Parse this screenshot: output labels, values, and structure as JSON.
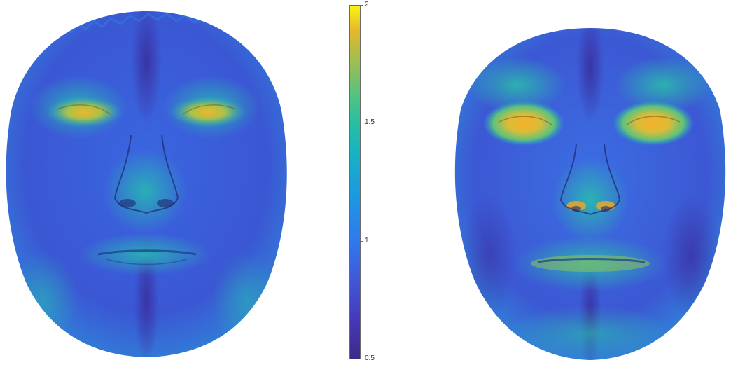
{
  "image": {
    "subject": "two-3d-face-heatmaps",
    "colormap": "parula",
    "colors": {
      "low": "#3e2a88",
      "mid": "#1c98e0",
      "high": "#f9f513",
      "face_base": "#3f62d6",
      "highlight_eyes": "#e8b62c",
      "cheek_teal": "#25b6b2"
    }
  },
  "colorbar": {
    "min": 0.5,
    "max": 2,
    "ticks": [
      {
        "value": 2,
        "label": "2"
      },
      {
        "value": 1.5,
        "label": "1.5"
      },
      {
        "value": 1,
        "label": "1"
      },
      {
        "value": 0.5,
        "label": "0.5"
      }
    ]
  }
}
